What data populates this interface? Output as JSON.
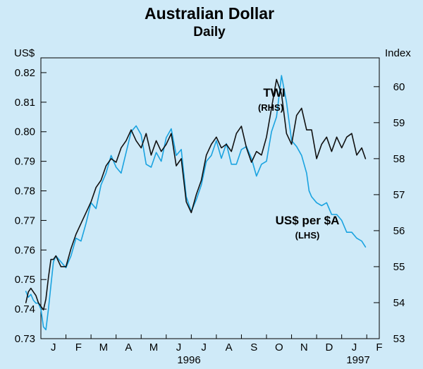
{
  "chart_data": {
    "type": "line",
    "title": "Australian Dollar",
    "subtitle": "Daily",
    "left_axis": {
      "unit_label": "US$",
      "ylim": [
        0.73,
        0.825
      ],
      "ticks": [
        "0.82",
        "0.81",
        "0.80",
        "0.79",
        "0.78",
        "0.77",
        "0.76",
        "0.75",
        "0.74",
        "0.73"
      ]
    },
    "right_axis": {
      "unit_label": "Index",
      "ylim": [
        53,
        60.8
      ],
      "ticks": [
        "60",
        "59",
        "58",
        "57",
        "56",
        "55",
        "54",
        "53"
      ]
    },
    "x_axis": {
      "months": [
        "J",
        "F",
        "M",
        "A",
        "M",
        "J",
        "J",
        "A",
        "S",
        "O",
        "N",
        "D",
        "J",
        "F"
      ],
      "year_labels": [
        "1996",
        "1997"
      ],
      "xlim": [
        0,
        13.5
      ]
    },
    "annotations": {
      "twi": "TWI",
      "twi_sub": "(RHS)",
      "usd": "US$ per $A",
      "usd_sub": "(LHS)"
    },
    "colors": {
      "usd_series": "#1aa3e0",
      "twi_series": "#111111",
      "background": "#cfeaf8"
    },
    "series": [
      {
        "name": "US$ per $A",
        "axis": "left",
        "x": [
          -0.6,
          -0.5,
          -0.4,
          -0.3,
          -0.2,
          -0.1,
          0.0,
          0.1,
          0.2,
          0.3,
          0.4,
          0.5,
          0.6,
          0.8,
          1.0,
          1.2,
          1.4,
          1.6,
          1.8,
          2.0,
          2.2,
          2.4,
          2.6,
          2.8,
          3.0,
          3.2,
          3.4,
          3.6,
          3.8,
          4.0,
          4.2,
          4.4,
          4.6,
          4.8,
          5.0,
          5.2,
          5.4,
          5.6,
          5.8,
          6.0,
          6.2,
          6.4,
          6.6,
          6.8,
          7.0,
          7.2,
          7.4,
          7.6,
          7.8,
          8.0,
          8.2,
          8.4,
          8.6,
          8.8,
          9.0,
          9.2,
          9.4,
          9.6,
          9.8,
          10.0,
          10.2,
          10.4,
          10.6,
          10.7,
          10.8,
          11.0,
          11.2,
          11.4,
          11.6,
          11.8,
          12.0,
          12.2,
          12.4,
          12.6,
          12.8,
          12.95
        ],
        "values": [
          0.746,
          0.744,
          0.745,
          0.743,
          0.742,
          0.742,
          0.74,
          0.734,
          0.733,
          0.74,
          0.748,
          0.756,
          0.758,
          0.756,
          0.754,
          0.758,
          0.764,
          0.763,
          0.769,
          0.776,
          0.774,
          0.782,
          0.786,
          0.792,
          0.788,
          0.786,
          0.793,
          0.8,
          0.802,
          0.799,
          0.789,
          0.788,
          0.793,
          0.79,
          0.798,
          0.801,
          0.792,
          0.794,
          0.778,
          0.773,
          0.777,
          0.782,
          0.79,
          0.792,
          0.797,
          0.791,
          0.796,
          0.789,
          0.789,
          0.794,
          0.795,
          0.791,
          0.785,
          0.789,
          0.79,
          0.8,
          0.805,
          0.819,
          0.81,
          0.797,
          0.795,
          0.792,
          0.786,
          0.78,
          0.778,
          0.776,
          0.775,
          0.776,
          0.772,
          0.772,
          0.77,
          0.766,
          0.766,
          0.764,
          0.763,
          0.761
        ]
      },
      {
        "name": "TWI",
        "axis": "right",
        "x": [
          -0.6,
          -0.5,
          -0.4,
          -0.3,
          -0.2,
          -0.1,
          0.0,
          0.1,
          0.2,
          0.3,
          0.4,
          0.5,
          0.6,
          0.8,
          1.0,
          1.2,
          1.4,
          1.6,
          1.8,
          2.0,
          2.2,
          2.4,
          2.6,
          2.8,
          3.0,
          3.2,
          3.4,
          3.6,
          3.8,
          4.0,
          4.2,
          4.4,
          4.6,
          4.8,
          5.0,
          5.2,
          5.4,
          5.6,
          5.8,
          6.0,
          6.2,
          6.4,
          6.6,
          6.8,
          7.0,
          7.2,
          7.4,
          7.6,
          7.8,
          8.0,
          8.2,
          8.4,
          8.6,
          8.8,
          9.0,
          9.2,
          9.4,
          9.6,
          9.8,
          10.0,
          10.2,
          10.4,
          10.6,
          10.8,
          11.0,
          11.2,
          11.4,
          11.6,
          11.8,
          12.0,
          12.2,
          12.4,
          12.6,
          12.8,
          12.95
        ],
        "values": [
          54.0,
          54.3,
          54.4,
          54.3,
          54.2,
          54.0,
          53.9,
          53.8,
          54.1,
          54.7,
          55.2,
          55.2,
          55.3,
          55.0,
          55.0,
          55.5,
          55.9,
          56.2,
          56.5,
          56.8,
          57.2,
          57.4,
          57.8,
          58.0,
          57.9,
          58.3,
          58.5,
          58.8,
          58.5,
          58.3,
          58.7,
          58.1,
          58.5,
          58.2,
          58.4,
          58.7,
          57.8,
          58.0,
          56.8,
          56.5,
          57.0,
          57.4,
          58.1,
          58.4,
          58.6,
          58.3,
          58.4,
          58.2,
          58.7,
          58.9,
          58.3,
          57.9,
          58.2,
          58.1,
          58.6,
          59.4,
          60.2,
          59.8,
          58.7,
          58.4,
          59.2,
          59.4,
          58.8,
          58.8,
          58.0,
          58.4,
          58.6,
          58.2,
          58.6,
          58.3,
          58.6,
          58.7,
          58.1,
          58.3,
          58.0
        ]
      }
    ]
  }
}
